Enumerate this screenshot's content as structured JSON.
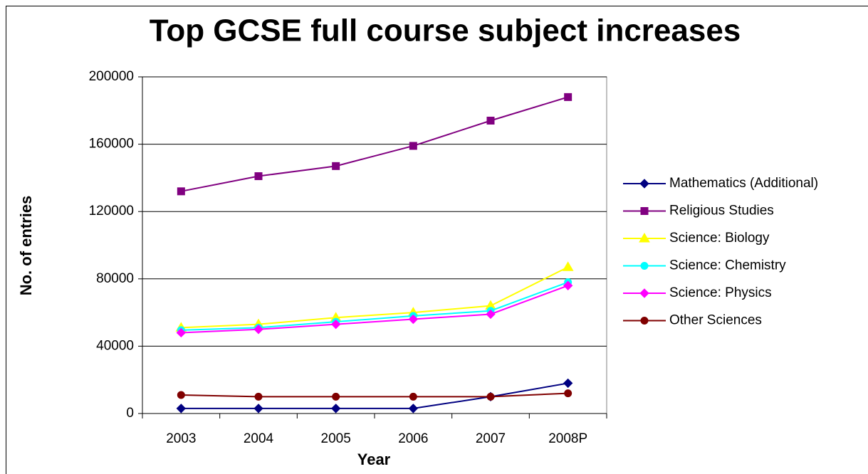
{
  "chart_data": {
    "type": "line",
    "title": "Top GCSE full course subject increases",
    "xlabel": "Year",
    "ylabel": "No. of entries",
    "categories": [
      "2003",
      "2004",
      "2005",
      "2006",
      "2007",
      "2008P"
    ],
    "series": [
      {
        "name": "Mathematics (Additional)",
        "color": "#000080",
        "marker": "diamond",
        "values": [
          3000,
          3000,
          3000,
          3000,
          10000,
          18000
        ]
      },
      {
        "name": "Religious Studies",
        "color": "#800080",
        "marker": "square",
        "values": [
          132000,
          141000,
          147000,
          159000,
          174000,
          188000
        ]
      },
      {
        "name": "Science: Biology",
        "color": "#ffff00",
        "marker": "triangle",
        "values": [
          51000,
          53000,
          57000,
          60000,
          64000,
          87000
        ]
      },
      {
        "name": "Science: Chemistry",
        "color": "#00ffff",
        "marker": "circle",
        "values": [
          49500,
          51000,
          54500,
          58000,
          61000,
          78000
        ]
      },
      {
        "name": "Science: Physics",
        "color": "#ff00ff",
        "marker": "diamond",
        "values": [
          48000,
          50000,
          53000,
          56000,
          59000,
          76000
        ]
      },
      {
        "name": "Other Sciences",
        "color": "#800000",
        "marker": "circle",
        "values": [
          11000,
          10000,
          10000,
          10000,
          10000,
          12000
        ]
      }
    ],
    "ylim": [
      0,
      200000
    ],
    "yticks": [
      0,
      40000,
      80000,
      120000,
      160000,
      200000
    ],
    "grid": true,
    "legend": "right"
  }
}
